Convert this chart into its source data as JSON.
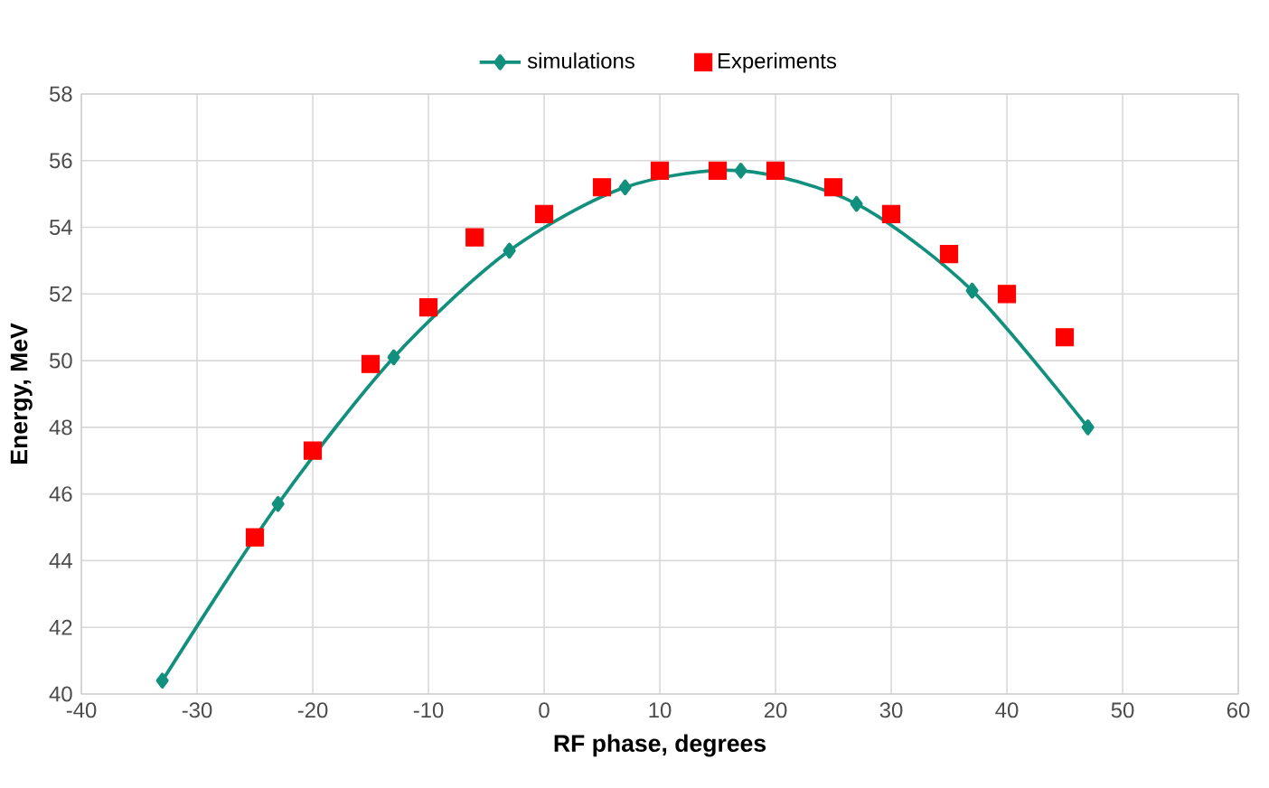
{
  "chart_data": {
    "type": "line",
    "xlabel": "RF phase, degrees",
    "ylabel": "Energy, MeV",
    "xlim": [
      -40,
      60
    ],
    "xticks": [
      -40,
      -30,
      -20,
      -10,
      0,
      10,
      20,
      30,
      40,
      50,
      60
    ],
    "ylim": [
      40,
      58
    ],
    "yticks": [
      40,
      42,
      44,
      46,
      48,
      50,
      52,
      54,
      56,
      58
    ],
    "grid": true,
    "legend": "top",
    "series": [
      {
        "name": "simulations",
        "marker": "diamond",
        "color": "#12907e",
        "x": [
          -33,
          -23,
          -13,
          -3,
          7,
          17,
          27,
          37,
          47
        ],
        "values": [
          40.4,
          45.7,
          50.1,
          53.3,
          55.2,
          55.7,
          54.7,
          52.1,
          48.0
        ]
      },
      {
        "name": "Experiments",
        "type": "scatter",
        "marker": "square",
        "color": "#ff0000",
        "x": [
          -25,
          -20,
          -15,
          -10,
          -6,
          0,
          5,
          10,
          15,
          20,
          25,
          30,
          35,
          40,
          45
        ],
        "values": [
          44.7,
          47.3,
          49.9,
          51.6,
          53.7,
          54.4,
          55.2,
          55.7,
          55.7,
          55.7,
          55.2,
          54.4,
          53.2,
          52.0,
          50.7
        ]
      }
    ]
  }
}
